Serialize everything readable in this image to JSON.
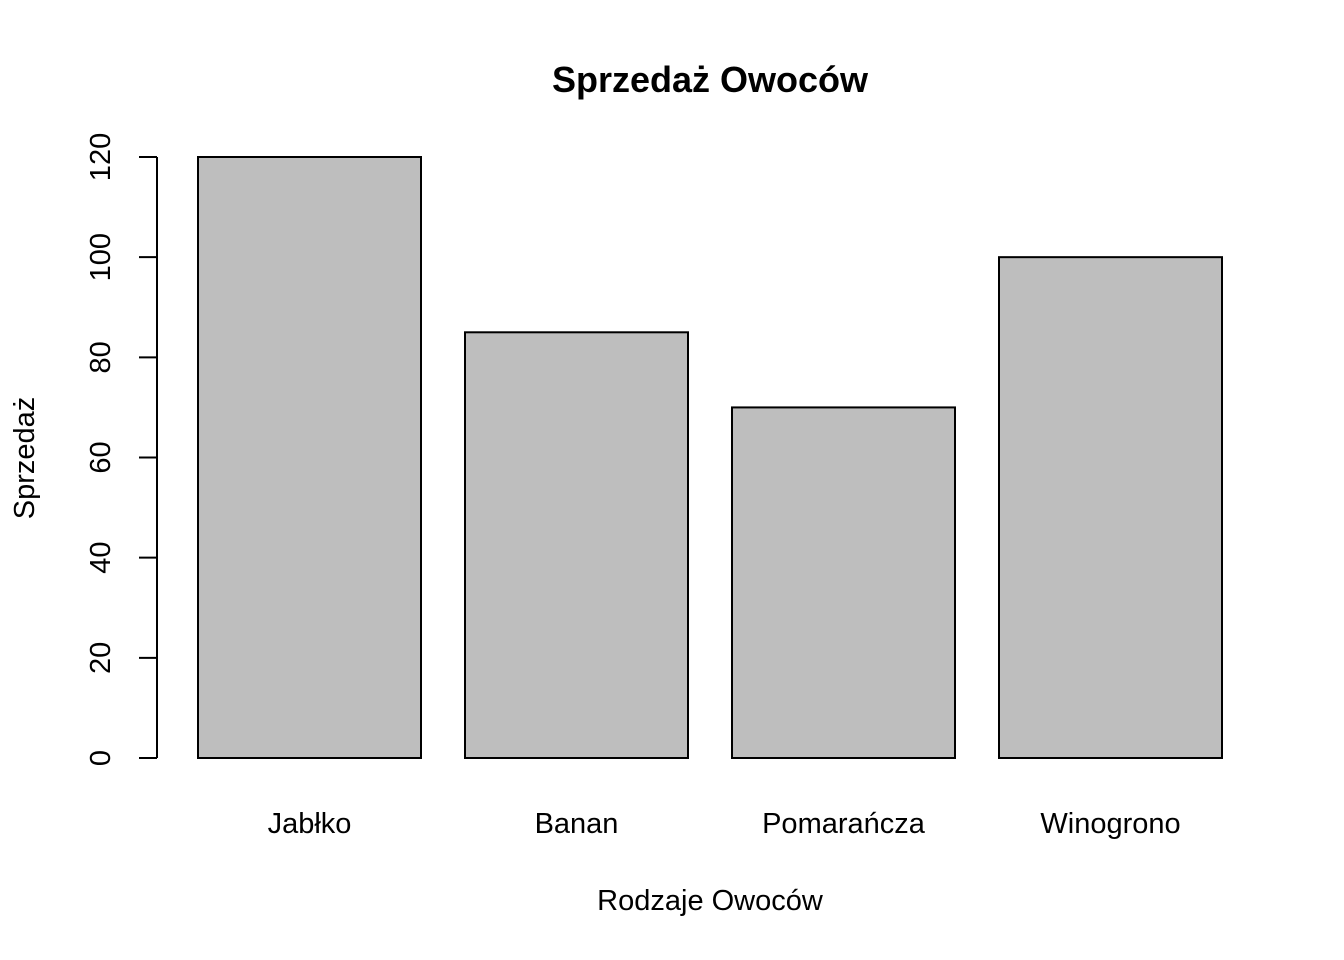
{
  "chart_data": {
    "type": "bar",
    "title": "Sprzedaż Owoców",
    "xlabel": "Rodzaje Owoców",
    "ylabel": "Sprzedaż",
    "categories": [
      "Jabłko",
      "Banan",
      "Pomarańcza",
      "Winogrono"
    ],
    "values": [
      120,
      85,
      70,
      100
    ],
    "ylim": [
      0,
      120
    ],
    "yticks": [
      0,
      20,
      40,
      60,
      80,
      100,
      120
    ],
    "yticklabels": [
      "0",
      "20",
      "40",
      "60",
      "80",
      "100",
      "120"
    ],
    "grid": false,
    "bar_color": "#bebebe",
    "bar_edge_color": "#000000"
  }
}
